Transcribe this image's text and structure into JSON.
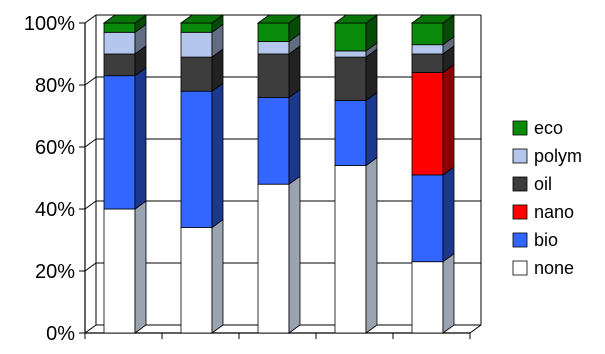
{
  "chart_data": {
    "type": "bar",
    "stacked": true,
    "normalized_percent": true,
    "three_d": true,
    "categories": [
      "",
      "",
      "",
      "",
      ""
    ],
    "ylim": [
      0,
      100
    ],
    "yticks": [
      "0%",
      "20%",
      "40%",
      "60%",
      "80%",
      "100%"
    ],
    "grid": true,
    "legend_position": "right",
    "series": [
      {
        "name": "none",
        "color": "#ffffff",
        "values": [
          40,
          34,
          48,
          54,
          23
        ]
      },
      {
        "name": "bio",
        "color": "#3366ff",
        "values": [
          43,
          44,
          28,
          21,
          28
        ]
      },
      {
        "name": "nano",
        "color": "#ff0000",
        "values": [
          0,
          0,
          0,
          0,
          33
        ]
      },
      {
        "name": "oil",
        "color": "#3d3d3d",
        "values": [
          7,
          11,
          14,
          14,
          6
        ]
      },
      {
        "name": "polym",
        "color": "#b4c6ec",
        "values": [
          7,
          8,
          4,
          2,
          3
        ]
      },
      {
        "name": "eco",
        "color": "#0a8a0a",
        "values": [
          3,
          3,
          6,
          9,
          7
        ]
      }
    ]
  }
}
